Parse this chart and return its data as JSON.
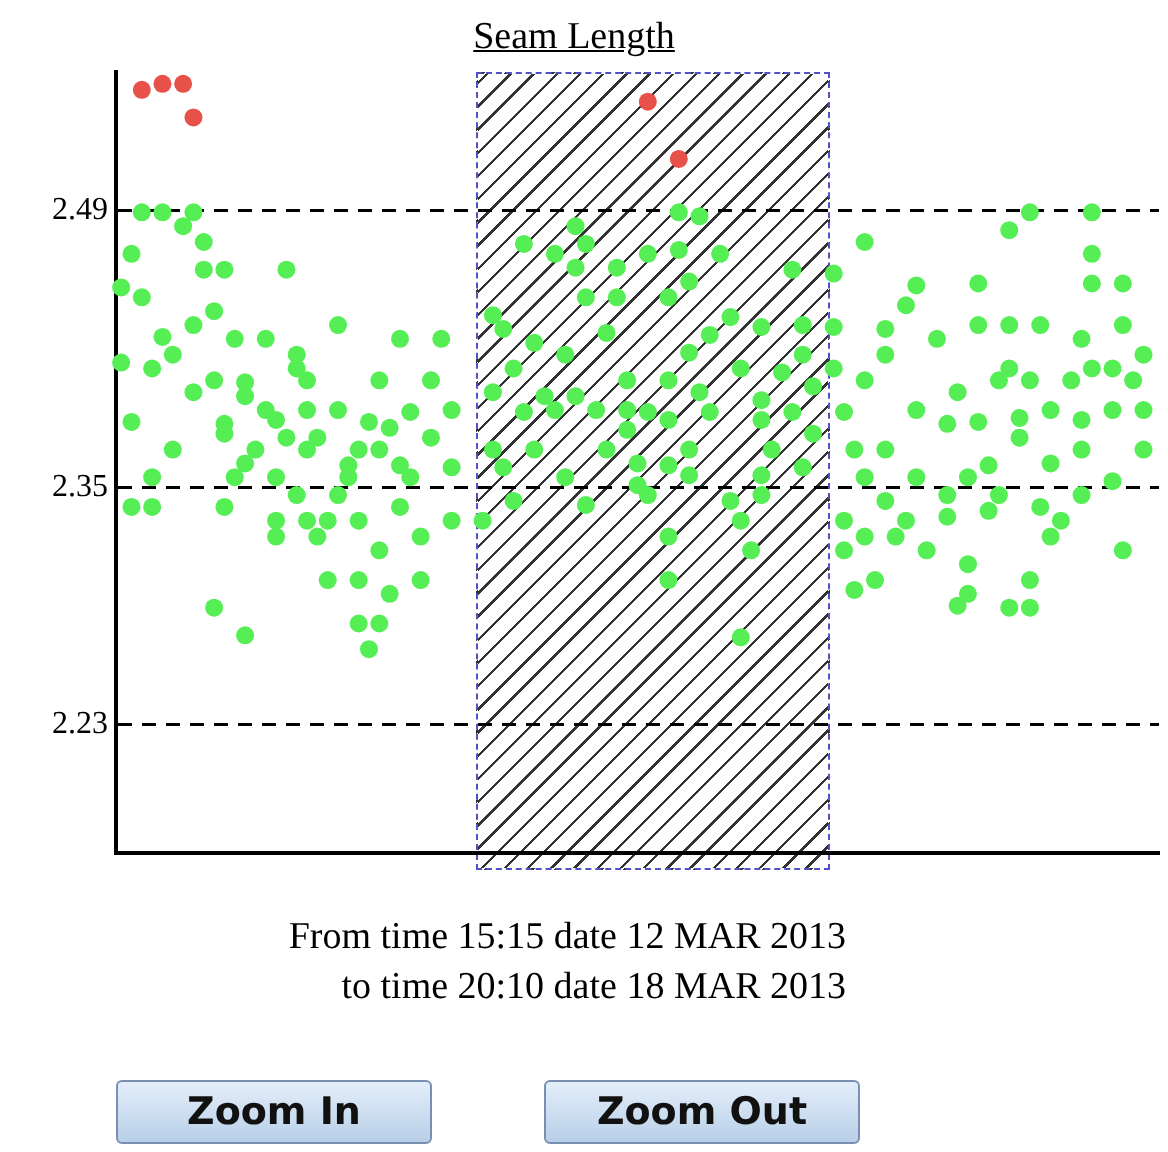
{
  "chart_data": {
    "type": "scatter",
    "title": "Seam Length",
    "annotations": [
      "From time 15:15 date 12 MAR 2013",
      "to time 20:10 date 18 MAR 2013",
      "Zoom In",
      "Zoom Out"
    ],
    "categories": [
      null,
      null,
      null,
      null,
      null,
      null,
      null,
      null,
      null,
      null,
      null,
      null,
      null,
      null,
      null,
      null,
      null,
      null,
      null,
      null,
      null,
      null,
      null,
      null,
      null,
      null,
      null,
      null,
      null,
      null,
      null,
      null,
      null,
      null,
      null,
      null,
      null,
      null,
      null,
      null,
      null,
      null,
      null,
      null,
      null,
      null,
      null,
      null,
      null,
      null,
      null,
      null,
      null,
      null,
      null,
      null,
      null,
      null,
      null,
      null,
      null,
      null,
      null,
      null,
      null,
      null,
      null,
      null,
      null,
      null,
      null,
      null,
      null,
      null,
      null,
      null,
      null,
      null,
      null,
      null,
      null,
      null,
      null,
      null,
      null,
      null,
      null,
      null,
      null,
      null,
      null,
      null,
      null,
      null,
      null,
      null,
      null,
      null,
      null,
      null,
      null
    ],
    "ylim": [
      2.165,
      2.56
    ],
    "yticks": [
      2.23,
      2.35,
      2.49
    ],
    "grid": "y",
    "tick_labels": "y",
    "marker": "circle",
    "series": [
      {
        "color": "#55ee55",
        "values": [
          2.451,
          2.468,
          2.489,
          2.41,
          2.489,
          2.417,
          2.482,
          2.489,
          2.474,
          2.439,
          2.46,
          2.425,
          2.403,
          2.369,
          2.425,
          2.384,
          2.46,
          2.417,
          2.404,
          2.375,
          2.333,
          2.432,
          2.361,
          2.369,
          2.383,
          2.404,
          2.38,
          2.425,
          2.388,
          2.325,
          2.404,
          2.425,
          2.389,
          null,
          null,
          2.333,
          2.437,
          2.43,
          2.41,
          2.473,
          2.423,
          2.396,
          2.468,
          2.417,
          2.482,
          2.473,
          2.389,
          2.428,
          2.461,
          2.404,
          2.362,
          2.468,
          null,
          2.446,
          2.489,
          2.454,
          2.487,
          2.427,
          2.468,
          2.436,
          2.41,
          2.318,
          2.431,
          2.369,
          2.408,
          2.46,
          2.432,
          2.401,
          null,
          2.458,
          2.388,
          2.369,
          2.474,
          2.303,
          2.43,
          2.325,
          2.442,
          2.452,
          2.318,
          2.425,
          2.382,
          2.398,
          2.355,
          2.453,
          2.361,
          2.404,
          2.48,
          2.385,
          2.489,
          2.432,
          2.389,
          2.333,
          2.404,
          2.425,
          2.489,
          null,
          2.41,
          2.453,
          2.404,
          2.417,
          null
        ]
      },
      {
        "color": "#55ee55",
        "values": [
          2.413,
          2.383,
          2.446,
          2.355,
          2.426,
          2.369,
          null,
          2.432,
          2.46,
          2.404,
          2.382,
          2.355,
          2.396,
          null,
          2.389,
          2.355,
          2.375,
          2.41,
          2.389,
          2.325,
          2.303,
          2.389,
          2.355,
          2.333,
          2.268,
          2.369,
          2.296,
          2.361,
          2.355,
          2.303,
          2.375,
          null,
          2.36,
          null,
          null,
          null,
          2.398,
          2.36,
          2.343,
          2.388,
          2.369,
          null,
          2.389,
          2.355,
          2.461,
          2.446,
          null,
          2.369,
          2.446,
          2.389,
          2.351,
          2.388,
          null,
          2.404,
          2.47,
          2.418,
          2.398,
          2.388,
          null,
          2.343,
          2.333,
          null,
          2.394,
          null,
          null,
          2.388,
          2.417,
          2.377,
          null,
          2.431,
          2.333,
          2.298,
          2.404,
          null,
          2.417,
          null,
          2.333,
          2.389,
          null,
          null,
          2.346,
          2.29,
          2.311,
          2.432,
          2.338,
          2.346,
          2.432,
          2.375,
          2.404,
          2.34,
          2.362,
          null,
          null,
          2.384,
          2.468,
          null,
          2.389,
          2.432,
          null,
          2.389,
          null
        ]
      },
      {
        "color": "#55ee55",
        "values": [
          null,
          2.34,
          null,
          2.34,
          null,
          null,
          null,
          2.398,
          null,
          2.289,
          2.377,
          null,
          2.362,
          null,
          null,
          2.333,
          null,
          2.346,
          2.369,
          null,
          null,
          2.346,
          null,
          2.303,
          null,
          2.318,
          null,
          2.34,
          null,
          null,
          null,
          null,
          2.333,
          null,
          null,
          null,
          2.369,
          null,
          null,
          null,
          null,
          null,
          null,
          null,
          2.396,
          2.341,
          null,
          null,
          null,
          2.379,
          null,
          2.346,
          null,
          2.384,
          null,
          2.369,
          null,
          null,
          null,
          null,
          2.274,
          null,
          2.384,
          null,
          null,
          null,
          2.36,
          null,
          null,
          2.41,
          2.318,
          null,
          2.355,
          null,
          2.369,
          null,
          null,
          2.355,
          null,
          null,
          2.335,
          null,
          2.296,
          2.383,
          null,
          null,
          2.41,
          null,
          2.303,
          null,
          2.325,
          null,
          null,
          2.369,
          2.453,
          null,
          2.353,
          2.318,
          null,
          2.369,
          null
        ]
      },
      {
        "color": "#55ee55",
        "values": [
          null,
          null,
          null,
          null,
          null,
          null,
          null,
          null,
          null,
          null,
          2.34,
          null,
          2.275,
          null,
          null,
          2.325,
          null,
          null,
          2.333,
          null,
          null,
          null,
          null,
          2.281,
          null,
          2.281,
          null,
          null,
          null,
          null,
          null,
          null,
          null,
          null,
          null,
          null,
          null,
          null,
          null,
          null,
          null,
          null,
          null,
          null,
          null,
          null,
          null,
          null,
          null,
          null,
          null,
          null,
          null,
          2.361,
          null,
          2.356,
          null,
          null,
          null,
          null,
          null,
          null,
          2.356,
          null,
          null,
          null,
          null,
          null,
          null,
          null,
          null,
          null,
          2.325,
          null,
          2.343,
          null,
          null,
          null,
          null,
          null,
          null,
          null,
          null,
          null,
          null,
          null,
          2.289,
          null,
          2.289,
          null,
          null,
          null,
          null,
          2.346,
          2.41,
          null,
          null,
          null,
          null,
          null,
          null
        ]
      },
      {
        "color": "#55ee55",
        "values": [
          null,
          null,
          null,
          null,
          null,
          null,
          null,
          null,
          null,
          null,
          null,
          null,
          null,
          null,
          null,
          null,
          null,
          null,
          null,
          null,
          null,
          null,
          null,
          null,
          null,
          null,
          null,
          null,
          null,
          null,
          null,
          null,
          null,
          null,
          null,
          null,
          null,
          null,
          null,
          null,
          null,
          null,
          null,
          null,
          null,
          null,
          null,
          null,
          null,
          null,
          null,
          null,
          null,
          2.325,
          null,
          null,
          null,
          null,
          null,
          null,
          null,
          null,
          2.346,
          null,
          null,
          null,
          null,
          null,
          null,
          null,
          null,
          null,
          null,
          null,
          null,
          null,
          null,
          null,
          null,
          null,
          null,
          null,
          null,
          null,
          null,
          null,
          null,
          null,
          null,
          null,
          null,
          null,
          null,
          null,
          null,
          null,
          null,
          null,
          null,
          null,
          null
        ]
      },
      {
        "color": "#55ee55",
        "values": [
          null,
          null,
          null,
          null,
          null,
          null,
          null,
          null,
          null,
          null,
          null,
          null,
          null,
          null,
          null,
          null,
          null,
          null,
          null,
          null,
          null,
          null,
          null,
          null,
          null,
          null,
          null,
          null,
          null,
          null,
          null,
          null,
          null,
          null,
          null,
          null,
          null,
          null,
          null,
          null,
          null,
          null,
          null,
          null,
          null,
          null,
          null,
          null,
          null,
          null,
          null,
          null,
          null,
          2.303,
          null,
          null,
          null,
          null,
          null,
          null,
          null,
          null,
          null,
          null,
          null,
          null,
          null,
          null,
          null,
          null,
          null,
          null,
          null,
          null,
          null,
          null,
          null,
          null,
          null,
          null,
          null,
          null,
          null,
          null,
          null,
          null,
          null,
          null,
          null,
          null,
          null,
          null,
          null,
          null,
          null,
          null,
          null,
          null,
          null,
          null,
          null
        ]
      },
      {
        "color": "#e8504a",
        "values": [
          null,
          null,
          2.551,
          null,
          2.554,
          null,
          2.554,
          2.537,
          null,
          null,
          null,
          null,
          null,
          null,
          null,
          null,
          null,
          null,
          null,
          null,
          null,
          null,
          null,
          null,
          null,
          null,
          null,
          null,
          null,
          null,
          null,
          null,
          null,
          null,
          null,
          null,
          null,
          null,
          null,
          null,
          null,
          null,
          null,
          null,
          null,
          null,
          null,
          null,
          null,
          null,
          null,
          2.545,
          null,
          null,
          2.516,
          null,
          null,
          null,
          null,
          null,
          null,
          null,
          null,
          null,
          null,
          null,
          null,
          null,
          null,
          null,
          null,
          null,
          null,
          null,
          null,
          null,
          null,
          null,
          null,
          null,
          null,
          null,
          null,
          null,
          null,
          null,
          null,
          null,
          null,
          null,
          null,
          null,
          null,
          null,
          null,
          null,
          null,
          null,
          null,
          null,
          null
        ]
      }
    ]
  }
}
